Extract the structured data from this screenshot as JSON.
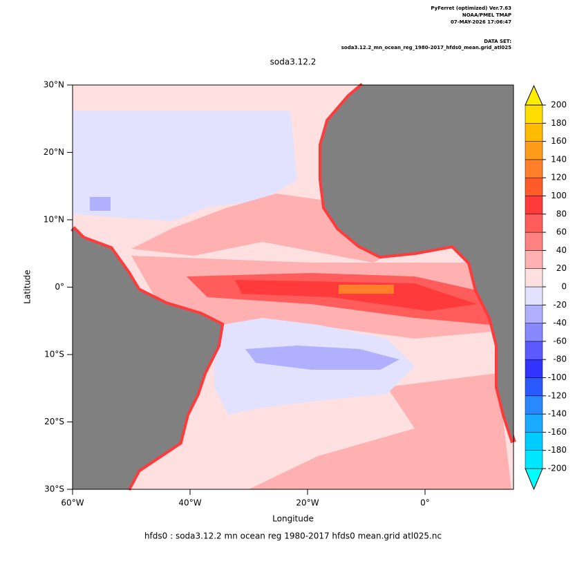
{
  "chart_data": {
    "type": "map",
    "header": [
      "PyFerret (optimized) Ver.7.63",
      "NOAA/PMEL TMAP",
      "07-MAY-2026 17:06:47"
    ],
    "dataset_label": "DATA SET:",
    "dataset": "soda3.12.2_mn_ocean_reg_1980-2017_hfds0_mean.grid_atl025",
    "title": "soda3.12.2",
    "xlabel": "Longitude",
    "ylabel": "Latitude",
    "footer": "hfds0 : soda3.12.2 mn ocean reg 1980-2017 hfds0 mean.grid atl025.nc",
    "xlim": [
      -60,
      15.06
    ],
    "ylim": [
      -30,
      30
    ],
    "xticks": [
      {
        "value": -60,
        "label": "60°W"
      },
      {
        "value": -40,
        "label": "40°W"
      },
      {
        "value": -20,
        "label": "20°W"
      },
      {
        "value": 0,
        "label": "0°"
      }
    ],
    "yticks": [
      {
        "value": -30,
        "label": "30°S"
      },
      {
        "value": -20,
        "label": "20°S"
      },
      {
        "value": -10,
        "label": "10°S"
      },
      {
        "value": 0,
        "label": "0°"
      },
      {
        "value": 10,
        "label": "10°N"
      },
      {
        "value": 20,
        "label": "20°N"
      },
      {
        "value": 30,
        "label": "30°N"
      }
    ],
    "colorbar": {
      "levels": [
        -200,
        -180,
        -160,
        -140,
        -120,
        -100,
        -80,
        -60,
        -40,
        -20,
        0,
        20,
        40,
        60,
        80,
        100,
        120,
        140,
        160,
        180,
        200
      ],
      "colors": [
        "#00ffff",
        "#00e6ff",
        "#00ccff",
        "#1aaaff",
        "#2a88ff",
        "#2a5aff",
        "#3333ff",
        "#5a5aff",
        "#8888ff",
        "#b0b0ff",
        "#e2e2ff",
        "#ffe0e0",
        "#ffb0b0",
        "#ff8282",
        "#ff5c5c",
        "#ff3a3a",
        "#ff5a2a",
        "#ff7f2a",
        "#ff9d1a",
        "#ffbb00",
        "#ffdd00",
        "#ffee00"
      ]
    }
  }
}
